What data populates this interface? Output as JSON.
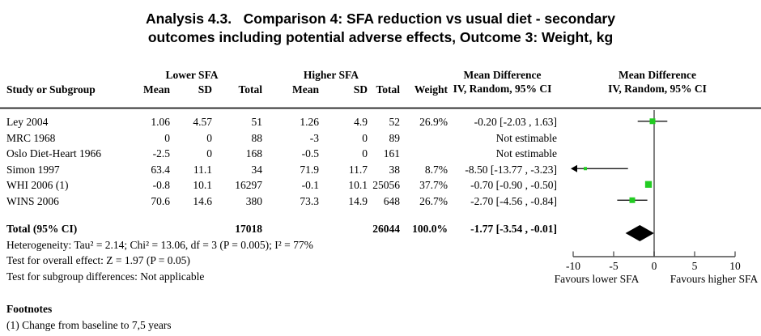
{
  "title": {
    "line1": "Analysis 4.3.   Comparison 4: SFA reduction vs usual diet - secondary",
    "line2": "outcomes including potential adverse effects, Outcome 3: Weight, kg"
  },
  "table": {
    "group_headers": {
      "lower": "Lower SFA",
      "higher": "Higher SFA"
    },
    "columns": {
      "study": "Study or Subgroup",
      "mean": "Mean",
      "sd": "SD",
      "total": "Total",
      "mean2": "Mean",
      "sd2": "SD",
      "total2": "Total",
      "weight": "Weight",
      "md_line1": "Mean Difference",
      "md_line2": "IV, Random, 95% CI"
    },
    "studies": [
      {
        "name": "Ley 2004",
        "mean1": "1.06",
        "sd1": "4.57",
        "total1": "51",
        "mean2": "1.26",
        "sd2": "4.9",
        "total2": "52",
        "weight": "26.9%",
        "md": "-0.20 [-2.03 , 1.63]"
      },
      {
        "name": "MRC 1968",
        "mean1": "0",
        "sd1": "0",
        "total1": "88",
        "mean2": "-3",
        "sd2": "0",
        "total2": "89",
        "weight": "",
        "md": "Not estimable"
      },
      {
        "name": "Oslo Diet-Heart 1966",
        "mean1": "-2.5",
        "sd1": "0",
        "total1": "168",
        "mean2": "-0.5",
        "sd2": "0",
        "total2": "161",
        "weight": "",
        "md": "Not estimable"
      },
      {
        "name": "Simon 1997",
        "mean1": "63.4",
        "sd1": "11.1",
        "total1": "34",
        "mean2": "71.9",
        "sd2": "11.7",
        "total2": "38",
        "weight": "8.7%",
        "md": "-8.50 [-13.77 , -3.23]"
      },
      {
        "name": "WHI 2006 (1)",
        "mean1": "-0.8",
        "sd1": "10.1",
        "total1": "16297",
        "mean2": "-0.1",
        "sd2": "10.1",
        "total2": "25056",
        "weight": "37.7%",
        "md": "-0.70 [-0.90 , -0.50]"
      },
      {
        "name": "WINS 2006",
        "mean1": "70.6",
        "sd1": "14.6",
        "total1": "380",
        "mean2": "73.3",
        "sd2": "14.9",
        "total2": "648",
        "weight": "26.7%",
        "md": "-2.70 [-4.56 , -0.84]"
      }
    ],
    "total_row": {
      "label": "Total (95% CI)",
      "total1": "17018",
      "total2": "26044",
      "weight": "100.0%",
      "md": "-1.77 [-3.54 , -0.01]"
    },
    "stats": [
      "Heterogeneity: Tau² = 2.14; Chi² = 13.06, df = 3 (P = 0.005); I² = 77%",
      "Test for overall effect: Z = 1.97 (P = 0.05)",
      "Test for subgroup differences: Not applicable"
    ]
  },
  "plot_header": {
    "line1": "Mean Difference",
    "line2": "IV, Random, 95% CI"
  },
  "footnotes": {
    "heading": "Footnotes",
    "items": [
      "(1) Change from baseline to 7,5 years"
    ]
  },
  "chart_data": {
    "type": "forest",
    "effect_measure": "Mean Difference, IV, Random, 95% CI",
    "xlim": [
      -10,
      10
    ],
    "ticks": [
      {
        "v": -10,
        "label": "-10"
      },
      {
        "v": -5,
        "label": "-5"
      },
      {
        "v": 0,
        "label": "0"
      },
      {
        "v": 5,
        "label": "5"
      },
      {
        "v": 10,
        "label": "10"
      }
    ],
    "zero_line": 0,
    "favours_left": "Favours lower SFA",
    "favours_right": "Favours higher SFA",
    "points": [
      {
        "study": "Ley 2004",
        "md": -0.2,
        "ci_low": -2.03,
        "ci_high": 1.63,
        "weight_pct": 26.9
      },
      {
        "study": "Simon 1997",
        "md": -8.5,
        "ci_low": -13.77,
        "ci_high": -3.23,
        "weight_pct": 8.7
      },
      {
        "study": "WHI 2006 (1)",
        "md": -0.7,
        "ci_low": -0.9,
        "ci_high": -0.5,
        "weight_pct": 37.7
      },
      {
        "study": "WINS 2006",
        "md": -2.7,
        "ci_low": -4.56,
        "ci_high": -0.84,
        "weight_pct": 26.7
      }
    ],
    "diamond": {
      "md": -1.77,
      "ci_low": -3.54,
      "ci_high": -0.01
    },
    "colors": {
      "square": "#22cc22",
      "diamond": "#000000",
      "zero_line": "#808080",
      "axis": "#4d4d4d",
      "ci_line": "#000000"
    }
  }
}
